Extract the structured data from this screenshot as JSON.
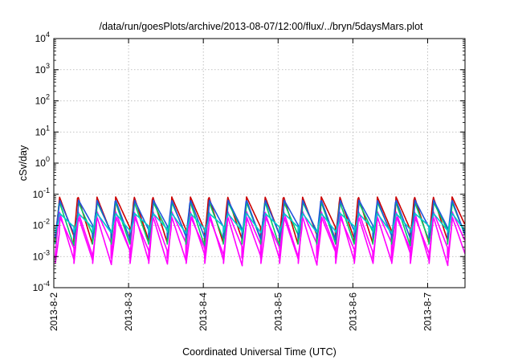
{
  "chart_data": {
    "type": "line",
    "title": "/data/run/goesPlots/archive/2013-08-07/12:00/flux/../bryn/5daysMars.plot",
    "xlabel": "Coordinated Universal Time (UTC)",
    "ylabel": "cSv/day",
    "yscale": "log",
    "ylim": [
      0.0001,
      10000
    ],
    "y_ticks": [
      {
        "base": "10",
        "exp": "-4"
      },
      {
        "base": "10",
        "exp": "-3"
      },
      {
        "base": "10",
        "exp": "-2"
      },
      {
        "base": "10",
        "exp": "-1"
      },
      {
        "base": "10",
        "exp": "0"
      },
      {
        "base": "10",
        "exp": "1"
      },
      {
        "base": "10",
        "exp": "2"
      },
      {
        "base": "10",
        "exp": "3"
      },
      {
        "base": "10",
        "exp": "4"
      }
    ],
    "x_range_days": [
      0,
      5.5
    ],
    "x_tick_labels": [
      "2013-8-2",
      "2013-8-3",
      "2013-8-4",
      "2013-8-5",
      "2013-8-6",
      "2013-8-7"
    ],
    "grid": true,
    "cycles_per_day": 4,
    "series": [
      {
        "color": "#cc0000",
        "peak": 0.09,
        "trough": 0.003
      },
      {
        "color": "#ff00ff",
        "peak": 0.03,
        "trough": 0.0009
      },
      {
        "color": "#00cc66",
        "peak": 0.06,
        "trough": 0.0025
      },
      {
        "color": "#2255dd",
        "peak": 0.07,
        "trough": 0.004
      },
      {
        "color": "#00cccc",
        "peak": 0.025,
        "trough": 0.006
      },
      {
        "color": "#ff00ff",
        "peak": 0.02,
        "trough": 0.0006
      }
    ]
  }
}
